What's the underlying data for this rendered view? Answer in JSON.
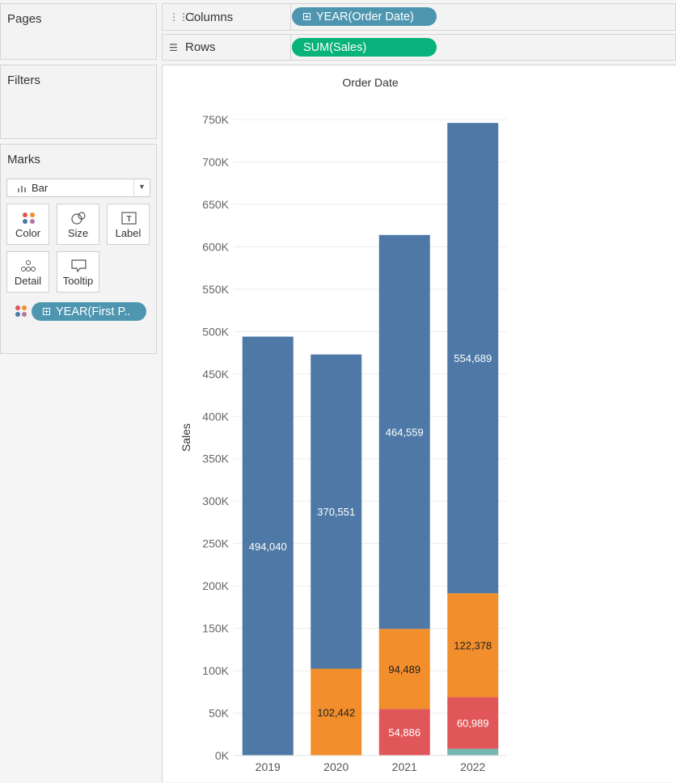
{
  "pages": {
    "title": "Pages"
  },
  "filters": {
    "title": "Filters"
  },
  "marks": {
    "title": "Marks",
    "mark_type": "Bar",
    "buttons": {
      "color": "Color",
      "size": "Size",
      "label": "Label",
      "detail": "Detail",
      "tooltip": "Tooltip"
    },
    "color_pill": "YEAR(First P..",
    "colors": {
      "pill": "#4e96b0"
    }
  },
  "shelves": {
    "columns": {
      "label": "Columns",
      "pill": "YEAR(Order Date)",
      "pill_color": "#4e96b0"
    },
    "rows": {
      "label": "Rows",
      "pill": "SUM(Sales)",
      "pill_color": "#07b37a"
    }
  },
  "chart_data": {
    "type": "bar",
    "title": "Order Date",
    "ylabel": "Sales",
    "xlabel": "",
    "ylim": [
      0,
      750000
    ],
    "yticks": [
      "0K",
      "50K",
      "100K",
      "150K",
      "200K",
      "250K",
      "300K",
      "350K",
      "400K",
      "450K",
      "500K",
      "550K",
      "600K",
      "650K",
      "700K",
      "750K"
    ],
    "categories": [
      "2019",
      "2020",
      "2021",
      "2022"
    ],
    "series": [
      {
        "values": [
          494040,
          370551,
          464559,
          554689
        ],
        "labels": [
          "494,040",
          "370,551",
          "464,559",
          "554,689"
        ],
        "color": "#4e79a7"
      },
      {
        "values": [
          0,
          102442,
          94489,
          122378
        ],
        "labels": [
          "",
          "102,442",
          "94,489",
          "122,378"
        ],
        "color": "#f28e2b"
      },
      {
        "values": [
          0,
          0,
          54886,
          60989
        ],
        "labels": [
          "",
          "",
          "54,886",
          "60,989"
        ],
        "color": "#e15759"
      },
      {
        "values": [
          0,
          0,
          0,
          8000
        ],
        "labels": [
          "",
          "",
          "",
          ""
        ],
        "color": "#76b7b2"
      }
    ],
    "stacked": true,
    "grid": true
  }
}
